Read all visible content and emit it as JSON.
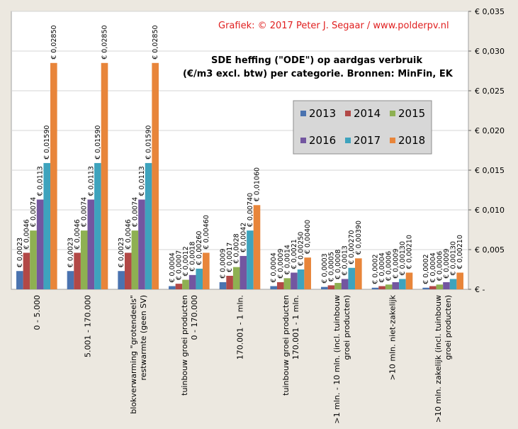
{
  "credit": "Grafiek:  © 2017  Peter J. Segaar / www.polderpv.nl",
  "chart_data": {
    "type": "bar",
    "title_line1": "SDE heffing  (\"ODE\")  op aardgas verbruik",
    "title_line2": "(€/m3 excl. btw) per categorie.  Bronnen: MinFin, EK",
    "categories": [
      [
        "0 - 5.000"
      ],
      [
        "5.001 - 170.000"
      ],
      [
        "blokverwarming \"grotendeels\"",
        "restwarmte (geen SV)"
      ],
      [
        "tuinbouw groei producten",
        "0 - 170.000"
      ],
      [
        "170.001 - 1 mln."
      ],
      [
        "tuinbouw groei producten",
        "170.001 - 1 mln."
      ],
      [
        ">1 mln. - 10 mln. (incl. tuinbouw",
        "groei producten)"
      ],
      [
        ">10 mln. niet-zakelijk"
      ],
      [
        ">10 mln. zakelijk (incl. tuinbouw",
        "groei producten)"
      ]
    ],
    "series": [
      {
        "name": "2013",
        "color": "#4a73b0",
        "values": [
          0.0023,
          0.0023,
          0.0023,
          0.0004,
          0.0009,
          0.0004,
          0.0003,
          0.0002,
          0.0002
        ]
      },
      {
        "name": "2014",
        "color": "#b24846",
        "values": [
          0.0046,
          0.0046,
          0.0046,
          0.0007,
          0.0017,
          0.0009,
          0.0005,
          0.0004,
          0.0004
        ]
      },
      {
        "name": "2015",
        "color": "#8eb052",
        "values": [
          0.0074,
          0.0074,
          0.0074,
          0.0012,
          0.0028,
          0.0014,
          0.0008,
          0.0006,
          0.0006
        ]
      },
      {
        "name": "2016",
        "color": "#7356a0",
        "values": [
          0.0113,
          0.0113,
          0.0113,
          0.0018,
          0.0042,
          0.0021,
          0.0013,
          0.0009,
          0.0009
        ]
      },
      {
        "name": "2017",
        "color": "#3ea3bd",
        "values": [
          0.0159,
          0.0159,
          0.0159,
          0.0026,
          0.0074,
          0.0025,
          0.0027,
          0.0013,
          0.0013
        ]
      },
      {
        "name": "2018",
        "color": "#e8853a",
        "values": [
          0.0285,
          0.0285,
          0.0285,
          0.0046,
          0.0106,
          0.004,
          0.0039,
          0.0021,
          0.0021
        ]
      }
    ],
    "data_labels": [
      [
        "€ 0,0023",
        "€ 0,0023",
        "€ 0,0023",
        "€ 0,0004",
        "€ 0,0009",
        "€ 0,0004",
        "€ 0,0003",
        "€ 0,0002",
        "€ 0,0002"
      ],
      [
        "€ 0,0046",
        "€ 0,0046",
        "€ 0,0046",
        "€ 0,0007",
        "€ 0,0017",
        "€ 0,0009",
        "€ 0,0005",
        "€ 0,0004",
        "€ 0,0004"
      ],
      [
        "€ 0,0074",
        "€ 0,0074",
        "€ 0,0074",
        "€ 0,0012",
        "€ 0,0028",
        "€ 0,0014",
        "€ 0,0008",
        "€ 0,0006",
        "€ 0,0006"
      ],
      [
        "€ 0,0113",
        "€ 0,0113",
        "€ 0,0113",
        "€ 0,0018",
        "€ 0,0042",
        "€ 0,0021",
        "€ 0,0013",
        "€ 0,0009",
        "€ 0,0009"
      ],
      [
        "€ 0,01590",
        "€ 0,01590",
        "€ 0,01590",
        "€ 0,00260",
        "€ 0,00740",
        "€ 0,00250",
        "€ 0,00270",
        "€ 0,00130",
        "€ 0,00130"
      ],
      [
        "€ 0,02850",
        "€ 0,02850",
        "€ 0,02850",
        "€ 0,00460",
        "€ 0,01060",
        "€ 0,00400",
        "€ 0,00390",
        "€ 0,00210",
        "€ 0,00210"
      ]
    ],
    "yticks": [
      0,
      0.005,
      0.01,
      0.015,
      0.02,
      0.025,
      0.03,
      0.035
    ],
    "ytick_labels": [
      "€ -",
      "€ 0,005",
      "€ 0,010",
      "€ 0,015",
      "€ 0,020",
      "€ 0,025",
      "€ 0,030",
      "€ 0,035"
    ],
    "ylim": [
      0,
      0.035
    ],
    "grid": true,
    "legend_position": "upper-right-inside",
    "colors": {
      "background": "#ece8e0",
      "plot": "#ffffff",
      "credit": "#e02020",
      "grid": "#d4d4d4"
    }
  }
}
